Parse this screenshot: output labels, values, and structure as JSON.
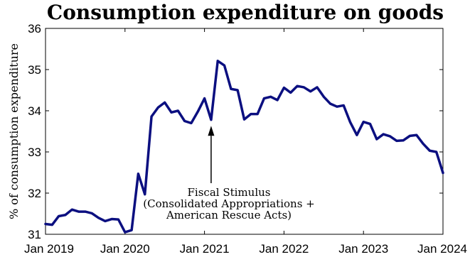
{
  "chart_data": {
    "type": "line",
    "title": "Consumption expenditure on goods",
    "xlabel": "",
    "ylabel": "% of consumption expenditure",
    "ylim": [
      31,
      36
    ],
    "yticks": [
      "31",
      "32",
      "33",
      "34",
      "35",
      "36"
    ],
    "xlim": [
      "2019-01",
      "2024-01"
    ],
    "xticks": [
      "Jan 2019",
      "Jan 2020",
      "Jan 2021",
      "Jan 2022",
      "Jan 2023",
      "Jan 2024"
    ],
    "grid": false,
    "line_color": "#0b0f80",
    "annotation": {
      "lines": [
        "Fiscal Stimulus",
        "(Consolidated Appropriations +",
        "American Rescue Acts)"
      ],
      "arrow_to": {
        "x": "2021-02",
        "y": 33.6
      }
    },
    "series": [
      {
        "name": "",
        "x": [
          "2019-01",
          "2019-02",
          "2019-03",
          "2019-04",
          "2019-05",
          "2019-06",
          "2019-07",
          "2019-08",
          "2019-09",
          "2019-10",
          "2019-11",
          "2019-12",
          "2020-01",
          "2020-02",
          "2020-03",
          "2020-04",
          "2020-05",
          "2020-06",
          "2020-07",
          "2020-08",
          "2020-09",
          "2020-10",
          "2020-11",
          "2020-12",
          "2021-01",
          "2021-02",
          "2021-03",
          "2021-04",
          "2021-05",
          "2021-06",
          "2021-07",
          "2021-08",
          "2021-09",
          "2021-10",
          "2021-11",
          "2021-12",
          "2022-01",
          "2022-02",
          "2022-03",
          "2022-04",
          "2022-05",
          "2022-06",
          "2022-07",
          "2022-08",
          "2022-09",
          "2022-10",
          "2022-11",
          "2022-12",
          "2023-01",
          "2023-02",
          "2023-03",
          "2023-04",
          "2023-05",
          "2023-06",
          "2023-07",
          "2023-08",
          "2023-09",
          "2023-10",
          "2023-11",
          "2023-12",
          "2024-01"
        ],
        "values": [
          31.25,
          31.23,
          31.44,
          31.47,
          31.6,
          31.55,
          31.55,
          31.51,
          31.4,
          31.32,
          31.37,
          31.36,
          31.05,
          31.1,
          32.47,
          31.97,
          33.86,
          34.08,
          34.2,
          33.96,
          34.0,
          33.75,
          33.7,
          33.98,
          34.3,
          33.78,
          35.21,
          35.1,
          34.53,
          34.5,
          33.79,
          33.92,
          33.92,
          34.3,
          34.34,
          34.26,
          34.56,
          34.44,
          34.6,
          34.57,
          34.47,
          34.57,
          34.34,
          34.17,
          34.1,
          34.13,
          33.72,
          33.41,
          33.73,
          33.68,
          33.31,
          33.43,
          33.38,
          33.27,
          33.28,
          33.39,
          33.41,
          33.2,
          33.03,
          33.0,
          32.49
        ]
      }
    ]
  }
}
